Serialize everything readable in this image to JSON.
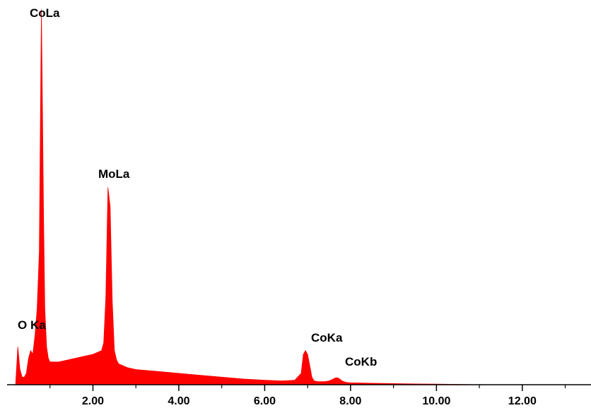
{
  "chart_data": {
    "type": "area",
    "title": "",
    "xlabel": "",
    "ylabel": "",
    "xlim": [
      0.0,
      13.6
    ],
    "ylim": [
      0,
      100
    ],
    "x_ticks": [
      {
        "value": 2.0,
        "label": "2.00"
      },
      {
        "value": 4.0,
        "label": "4.00"
      },
      {
        "value": 6.0,
        "label": "6.00"
      },
      {
        "value": 8.0,
        "label": "8.00"
      },
      {
        "value": 10.0,
        "label": "10.00"
      },
      {
        "value": 12.0,
        "label": "12.00"
      }
    ],
    "minor_ticks": [
      1.0,
      3.0,
      5.0,
      7.0,
      9.0,
      11.0,
      13.0
    ],
    "grid": false,
    "series": [
      {
        "color": "#ff0000",
        "x": [
          0.2,
          0.25,
          0.3,
          0.35,
          0.4,
          0.45,
          0.5,
          0.55,
          0.6,
          0.65,
          0.7,
          0.75,
          0.78,
          0.8,
          0.82,
          0.85,
          0.88,
          0.92,
          0.96,
          1.0,
          1.1,
          1.2,
          1.4,
          1.6,
          1.8,
          2.0,
          2.1,
          2.2,
          2.25,
          2.3,
          2.35,
          2.4,
          2.45,
          2.5,
          2.55,
          2.6,
          2.7,
          2.8,
          3.0,
          3.5,
          4.0,
          4.5,
          5.0,
          5.5,
          6.0,
          6.4,
          6.7,
          6.85,
          6.9,
          6.95,
          7.0,
          7.05,
          7.1,
          7.15,
          7.25,
          7.4,
          7.5,
          7.6,
          7.65,
          7.7,
          7.75,
          7.8,
          7.9,
          8.0,
          8.5,
          9.0,
          9.5,
          10.0,
          10.5,
          11.0
        ],
        "y": [
          0,
          10,
          4,
          2,
          2,
          3,
          7,
          9,
          8,
          13,
          20,
          35,
          75,
          99,
          78,
          45,
          20,
          10,
          7,
          6,
          6,
          6,
          6.5,
          7,
          7.5,
          8,
          8.5,
          9,
          11,
          23,
          52,
          47,
          22,
          9,
          6.5,
          5.5,
          5,
          4.5,
          4,
          3.5,
          3,
          2.5,
          2,
          1.5,
          1.2,
          1.0,
          1.2,
          3,
          8,
          9,
          8,
          5,
          2,
          1,
          0.8,
          0.8,
          1,
          1.5,
          1.8,
          1.8,
          1.5,
          1,
          0.6,
          0.5,
          0.4,
          0.3,
          0.2,
          0.15,
          0.1,
          0.0
        ]
      }
    ],
    "peaks": [
      {
        "label": "O Ka",
        "energy": 0.52
      },
      {
        "label": "CoLa",
        "energy": 0.78
      },
      {
        "label": "MoLa",
        "energy": 2.29
      },
      {
        "label": "CoKa",
        "energy": 6.93
      },
      {
        "label": "CoKb",
        "energy": 7.65
      }
    ]
  }
}
